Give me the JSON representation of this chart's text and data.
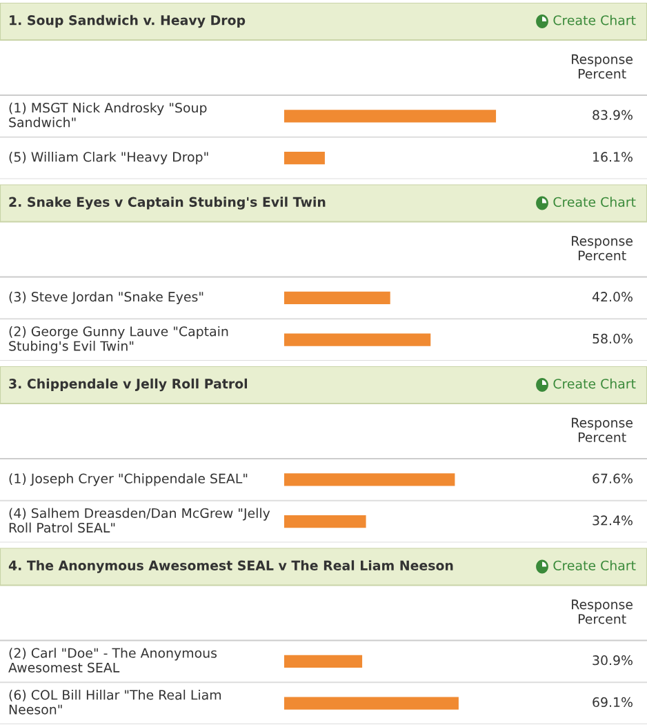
{
  "chart_data": [
    {
      "type": "bar",
      "orientation": "horizontal",
      "title": "1. Soup Sandwich v. Heavy Drop",
      "annotations": [
        "Create Chart",
        "Response\nPercent"
      ],
      "categories": [
        "(1) MSGT Nick Androsky \"Soup\nSandwich\"",
        "(5) William Clark \"Heavy Drop\""
      ],
      "values": [
        83.9,
        16.1
      ],
      "value_labels": [
        "83.9%",
        "16.1%"
      ],
      "color": "#f08a32"
    },
    {
      "type": "bar",
      "orientation": "horizontal",
      "title": "2. Snake Eyes v Captain Stubing's Evil Twin",
      "annotations": [
        "Create Chart",
        "Response\nPercent"
      ],
      "categories": [
        "(3) Steve Jordan \"Snake Eyes\"",
        "(2) George Gunny Lauve \"Captain\nStubing's Evil Twin\""
      ],
      "values": [
        42.0,
        58.0
      ],
      "value_labels": [
        "42.0%",
        "58.0%"
      ],
      "color": "#f08a32"
    },
    {
      "type": "bar",
      "orientation": "horizontal",
      "title": "3. Chippendale v Jelly Roll Patrol",
      "annotations": [
        "Create Chart",
        "Response\nPercent"
      ],
      "categories": [
        "(1) Joseph Cryer \"Chippendale SEAL\"",
        "(4) Salhem Dreasden/Dan McGrew \"Jelly\nRoll Patrol SEAL\""
      ],
      "values": [
        67.6,
        32.4
      ],
      "value_labels": [
        "67.6%",
        "32.4%"
      ],
      "color": "#f08a32"
    },
    {
      "type": "bar",
      "orientation": "horizontal",
      "title": "4. The Anonymous Awesomest SEAL v The Real Liam Neeson",
      "annotations": [
        "Create Chart",
        "Response\nPercent"
      ],
      "categories": [
        "(2) Carl \"Doe\" - The Anonymous\nAwesomest SEAL",
        "(6) COL Bill Hillar \"The Real Liam\nNeeson\""
      ],
      "values": [
        30.9,
        69.1
      ],
      "value_labels": [
        "30.9%",
        "69.1%"
      ],
      "color": "#f08a32"
    }
  ]
}
